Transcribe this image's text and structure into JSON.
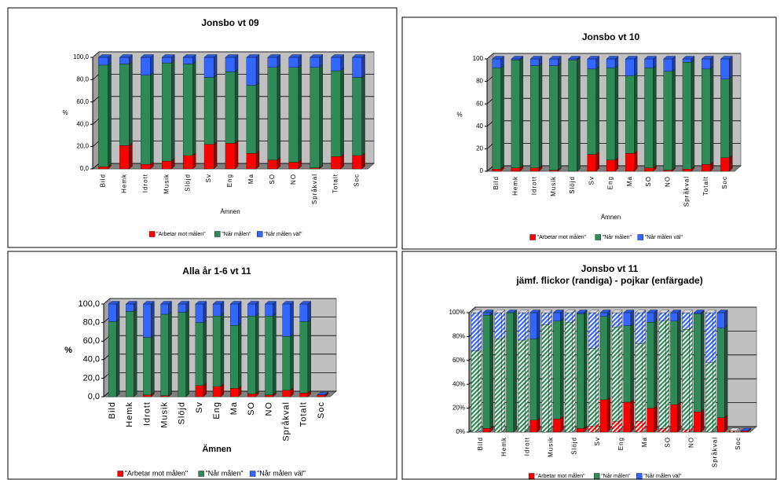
{
  "chart_data": [
    {
      "type": "bar",
      "stacked": true,
      "title": "Jonsbo vt 09",
      "y_label": "%",
      "x_label": "Ämnen",
      "categories": [
        "Bild",
        "Hemk",
        "Idrott",
        "Musik",
        "Slöjd",
        "Sv",
        "Eng",
        "Ma",
        "SO",
        "NO",
        "Språkval",
        "Totalt",
        "Soc"
      ],
      "series": [
        {
          "name": "\"Arbetar mot målen\"",
          "color": "#ff0000",
          "values": [
            2,
            21,
            4,
            7,
            12,
            22,
            23,
            14,
            8,
            6,
            1,
            11,
            12
          ]
        },
        {
          "name": "\"Når målen\"",
          "color": "#2e8b57",
          "values": [
            91,
            73,
            80,
            88,
            82,
            60,
            64,
            61,
            83,
            85,
            90,
            77,
            70
          ]
        },
        {
          "name": "\"Når målen väl\"",
          "color": "#3366ff",
          "values": [
            7,
            6,
            16,
            5,
            6,
            18,
            13,
            25,
            9,
            9,
            9,
            12,
            18
          ]
        }
      ],
      "ylim": [
        0,
        100
      ],
      "yticks": [
        {
          "value": 0,
          "label": "0,0"
        },
        {
          "value": 20,
          "label": "20,0"
        },
        {
          "value": 40,
          "label": "40,0"
        },
        {
          "value": 60,
          "label": "60,0"
        },
        {
          "value": 80,
          "label": "80,0"
        },
        {
          "value": 100,
          "label": "100,0"
        }
      ],
      "grid": true,
      "legend": "bottom"
    },
    {
      "type": "bar",
      "stacked": true,
      "title": "Jonsbo vt 10",
      "y_label": "%",
      "x_label": "Ämnen",
      "categories": [
        "Bild",
        "Hemk",
        "Idrott",
        "Musik",
        "Slöjd",
        "Sv",
        "Eng",
        "Ma",
        "SO",
        "NO",
        "Språkval",
        "Totalt",
        "Soc"
      ],
      "series": [
        {
          "name": "\"Arbetar mot målen\"",
          "color": "#ff0000",
          "values": [
            2,
            3,
            3,
            1,
            0,
            15,
            10,
            16,
            3,
            1,
            2,
            6,
            12
          ]
        },
        {
          "name": "\"Når målen\"",
          "color": "#2e8b57",
          "values": [
            90,
            96,
            91,
            93,
            99,
            76,
            82,
            69,
            89,
            88,
            95,
            85,
            70
          ]
        },
        {
          "name": "\"Når målen väl\"",
          "color": "#3366ff",
          "values": [
            8,
            1,
            6,
            6,
            1,
            9,
            8,
            15,
            8,
            11,
            3,
            9,
            18
          ]
        }
      ],
      "ylim": [
        0,
        100
      ],
      "yticks": [
        0,
        20,
        40,
        60,
        80,
        100
      ],
      "grid": true,
      "legend": "bottom"
    },
    {
      "type": "bar",
      "stacked": true,
      "title": "Alla  år 1-6 vt 11",
      "y_label": "%",
      "x_label": "Ämnen",
      "categories": [
        "Bild",
        "Hemk",
        "Idrott",
        "Musik",
        "Slöjd",
        "Sv",
        "Eng",
        "Ma",
        "SO",
        "NO",
        "Språkval",
        "Totalt",
        "Soc"
      ],
      "series": [
        {
          "name": "\"Arbetar mot målen\"",
          "color": "#ff0000",
          "values": [
            0,
            0,
            2,
            1,
            0,
            12,
            11,
            9,
            3,
            2,
            7,
            4,
            2
          ]
        },
        {
          "name": "\"Når målen\"",
          "color": "#2e8b57",
          "values": [
            81,
            92,
            62,
            88,
            91,
            68,
            76,
            68,
            84,
            85,
            58,
            77,
            0
          ]
        },
        {
          "name": "\"Når målen väl\"",
          "color": "#3366ff",
          "values": [
            19,
            8,
            36,
            11,
            9,
            20,
            13,
            23,
            13,
            13,
            35,
            19,
            0
          ]
        }
      ],
      "ylim": [
        0,
        100
      ],
      "yticks": [
        {
          "value": 0,
          "label": "0,0"
        },
        {
          "value": 20,
          "label": "20,0"
        },
        {
          "value": 40,
          "label": "40,0"
        },
        {
          "value": 60,
          "label": "60,0"
        },
        {
          "value": 80,
          "label": "80,0"
        },
        {
          "value": 100,
          "label": "100,0"
        }
      ],
      "grid": true,
      "legend": "bottom"
    },
    {
      "type": "bar",
      "stacked": true,
      "title": "Jonsbo vt 11",
      "subtitle": "jämf. flickor (randiga) - pojkar (enfärgade)",
      "categories": [
        "Bild",
        null,
        "Hemk",
        null,
        "Idrott",
        null,
        "Musik",
        null,
        "Slöjd",
        null,
        "Sv",
        null,
        "Eng",
        null,
        "Ma",
        null,
        "SO",
        null,
        "NO",
        null,
        "Språkval",
        null,
        "Soc",
        null
      ],
      "striped": [
        true,
        false,
        true,
        false,
        true,
        false,
        true,
        false,
        true,
        false,
        true,
        false,
        true,
        false,
        true,
        false,
        true,
        false,
        true,
        false,
        true,
        false,
        true,
        false
      ],
      "series": [
        {
          "name": "\"Arbetar mot målen\"",
          "color": "#ff0000",
          "values": [
            0,
            3,
            0,
            0,
            0,
            10,
            0,
            11,
            0,
            3,
            5,
            27,
            9,
            25,
            9,
            20,
            3,
            23,
            2,
            17,
            0,
            12,
            1,
            1
          ]
        },
        {
          "name": "\"Når målen\"",
          "color": "#2e8b57",
          "values": [
            68,
            95,
            78,
            100,
            77,
            68,
            90,
            82,
            92,
            96,
            65,
            70,
            79,
            64,
            65,
            72,
            90,
            70,
            84,
            82,
            58,
            75,
            0,
            0
          ]
        },
        {
          "name": "\"Når målen väl\"",
          "color": "#3366ff",
          "values": [
            32,
            2,
            22,
            0,
            23,
            22,
            10,
            7,
            8,
            1,
            30,
            3,
            12,
            11,
            26,
            8,
            7,
            7,
            14,
            1,
            42,
            13,
            0,
            0
          ]
        }
      ],
      "ylim": [
        0,
        100
      ],
      "yticks": [
        {
          "value": 0,
          "label": "0%"
        },
        {
          "value": 20,
          "label": "20%"
        },
        {
          "value": 40,
          "label": "40%"
        },
        {
          "value": 60,
          "label": "60%"
        },
        {
          "value": 80,
          "label": "80%"
        },
        {
          "value": 100,
          "label": "100%"
        }
      ],
      "grid": true,
      "legend": "bottom"
    }
  ]
}
